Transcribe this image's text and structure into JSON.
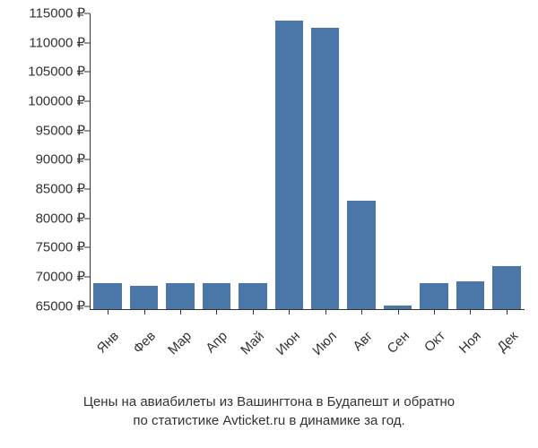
{
  "chart": {
    "type": "bar",
    "categories": [
      "Янв",
      "Фев",
      "Мар",
      "Апр",
      "Май",
      "Июн",
      "Июл",
      "Авг",
      "Сен",
      "Окт",
      "Ноя",
      "Дек"
    ],
    "values": [
      69000,
      68500,
      69000,
      69000,
      68900,
      113800,
      112500,
      83000,
      65100,
      69000,
      69200,
      71800
    ],
    "bar_color": "#4a76a8",
    "background_color": "#ffffff",
    "text_color": "#333333",
    "axis_color": "#333333",
    "ylim_min": 64500,
    "ylim_max": 115000,
    "ytick_min": 65000,
    "ytick_max": 115000,
    "ytick_step": 5000,
    "currency_symbol": "₽",
    "bar_width_ratio": 0.78,
    "label_fontsize": 15
  },
  "caption": {
    "line1": "Цены на авиабилеты из Вашингтона в Будапешт и обратно",
    "line2": "по статистике Avticket.ru в динамике за год."
  }
}
